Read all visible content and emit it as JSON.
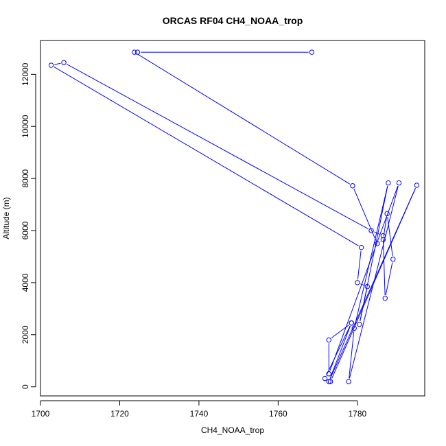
{
  "chart_data": {
    "type": "line",
    "title": "ORCAS RF04 CH4_NOAA_trop",
    "xlabel": "CH4_NOAA_trop",
    "ylabel": "Altitude (m)",
    "xlim": [
      1700,
      1797
    ],
    "ylim": [
      -350,
      13300
    ],
    "xticks": [
      1700,
      1720,
      1740,
      1760,
      1780
    ],
    "yticks": [
      0,
      2000,
      4000,
      6000,
      8000,
      10000,
      12000
    ],
    "grid": false,
    "legend": "none",
    "color": "#0000ff",
    "series": [
      {
        "points": [
          [
            1768.5,
            12850
          ],
          [
            1724.5,
            12850
          ],
          [
            1723.7,
            12850
          ],
          [
            1778.8,
            7720
          ],
          [
            1785.0,
            5500
          ],
          [
            1786.5,
            5650
          ],
          [
            1787.5,
            6650
          ],
          [
            1789.0,
            4900
          ],
          [
            1787.0,
            3400
          ],
          [
            1786.5,
            5800
          ],
          [
            1783.5,
            6000
          ],
          [
            1705.9,
            12450
          ],
          [
            1702.7,
            12350
          ],
          [
            1781.0,
            5350
          ],
          [
            1780.0,
            4000
          ],
          [
            1782.5,
            3850
          ],
          [
            1780.5,
            2400
          ],
          [
            1787.8,
            7830
          ],
          [
            1779.2,
            2250
          ],
          [
            1777.8,
            200
          ],
          [
            1790.5,
            7830
          ],
          [
            1772.8,
            500
          ],
          [
            1772.8,
            1800
          ],
          [
            1778.5,
            2450
          ],
          [
            1772.8,
            200
          ],
          [
            1795.0,
            7740
          ],
          [
            1773.2,
            200
          ],
          [
            1771.8,
            320
          ],
          [
            1778.5,
            2450
          ]
        ]
      }
    ]
  }
}
